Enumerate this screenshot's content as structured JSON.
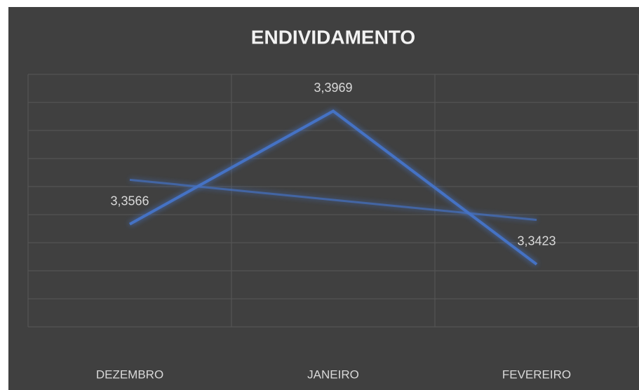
{
  "chart_data": {
    "type": "line",
    "title": "ENDIVIDAMENTO",
    "categories": [
      "DEZEMBRO",
      "JANEIRO",
      "FEVEREIRO"
    ],
    "series": [
      {
        "color": "#4472c4",
        "values": [
          3.3566,
          3.3969,
          3.3423
        ],
        "value_labels": [
          "3,3566",
          "3,3969",
          "3,3423"
        ]
      }
    ],
    "ylim": [
      3.32,
      3.41
    ],
    "yticks": [
      3.32,
      3.33,
      3.34,
      3.35,
      3.36,
      3.37,
      3.38,
      3.39,
      3.4,
      3.41
    ],
    "grid": true,
    "trendline": true
  }
}
